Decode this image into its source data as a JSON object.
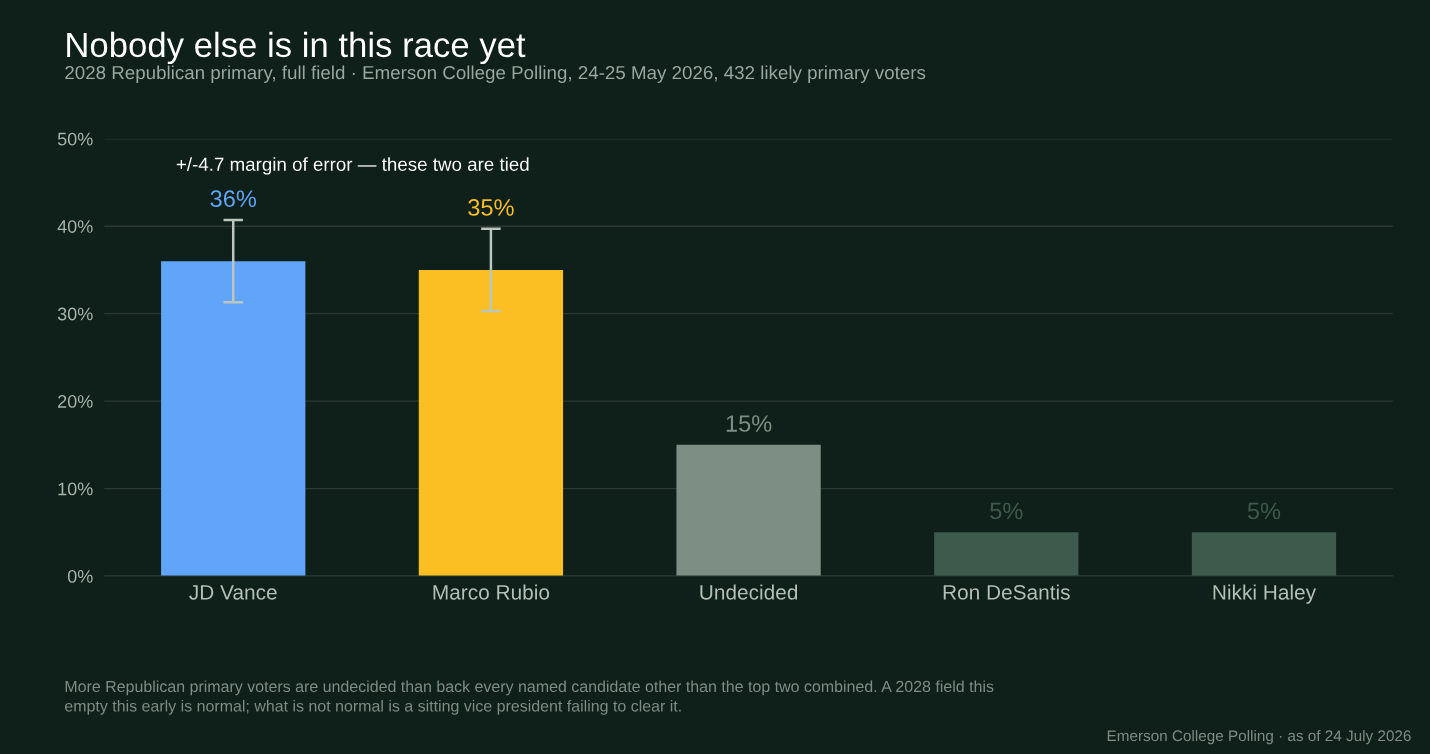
{
  "chart_data": {
    "type": "bar",
    "title": "Nobody else is in this race yet",
    "subtitle": "2028 Republican primary, full field · Emerson College Polling, 24-25 May 2026, 432 likely primary voters",
    "categories": [
      "JD Vance",
      "Marco Rubio",
      "Undecided",
      "Ron DeSantis",
      "Nikki Haley"
    ],
    "values": [
      36,
      35,
      15,
      5,
      5
    ],
    "colors": [
      "#60a5fa",
      "#fbbf24",
      "#7d8f84",
      "#3d5a4c",
      "#3d5a4c"
    ],
    "errors": [
      4.7,
      4.7,
      null,
      null,
      null
    ],
    "value_labels": [
      "36%",
      "35%",
      "15%",
      "5%",
      "5%"
    ],
    "ylim": [
      0,
      50
    ],
    "yticks": [
      {
        "value": 0,
        "label": "0%"
      },
      {
        "value": 10,
        "label": "10%"
      },
      {
        "value": 20,
        "label": "20%"
      },
      {
        "value": 30,
        "label": "30%"
      },
      {
        "value": 40,
        "label": "40%"
      },
      {
        "value": 50,
        "label": "50%"
      }
    ],
    "grid": "y",
    "legend": false,
    "annotations": [
      "+/-4.7 margin of error — these two are tied",
      "More Republican primary voters are undecided than back every named candidate other than the top two combined. A 2028 field this\nempty this early is normal; what is not normal is a sitting vice president failing to clear it.",
      "Emerson College Polling · as of 24 July 2026"
    ]
  }
}
